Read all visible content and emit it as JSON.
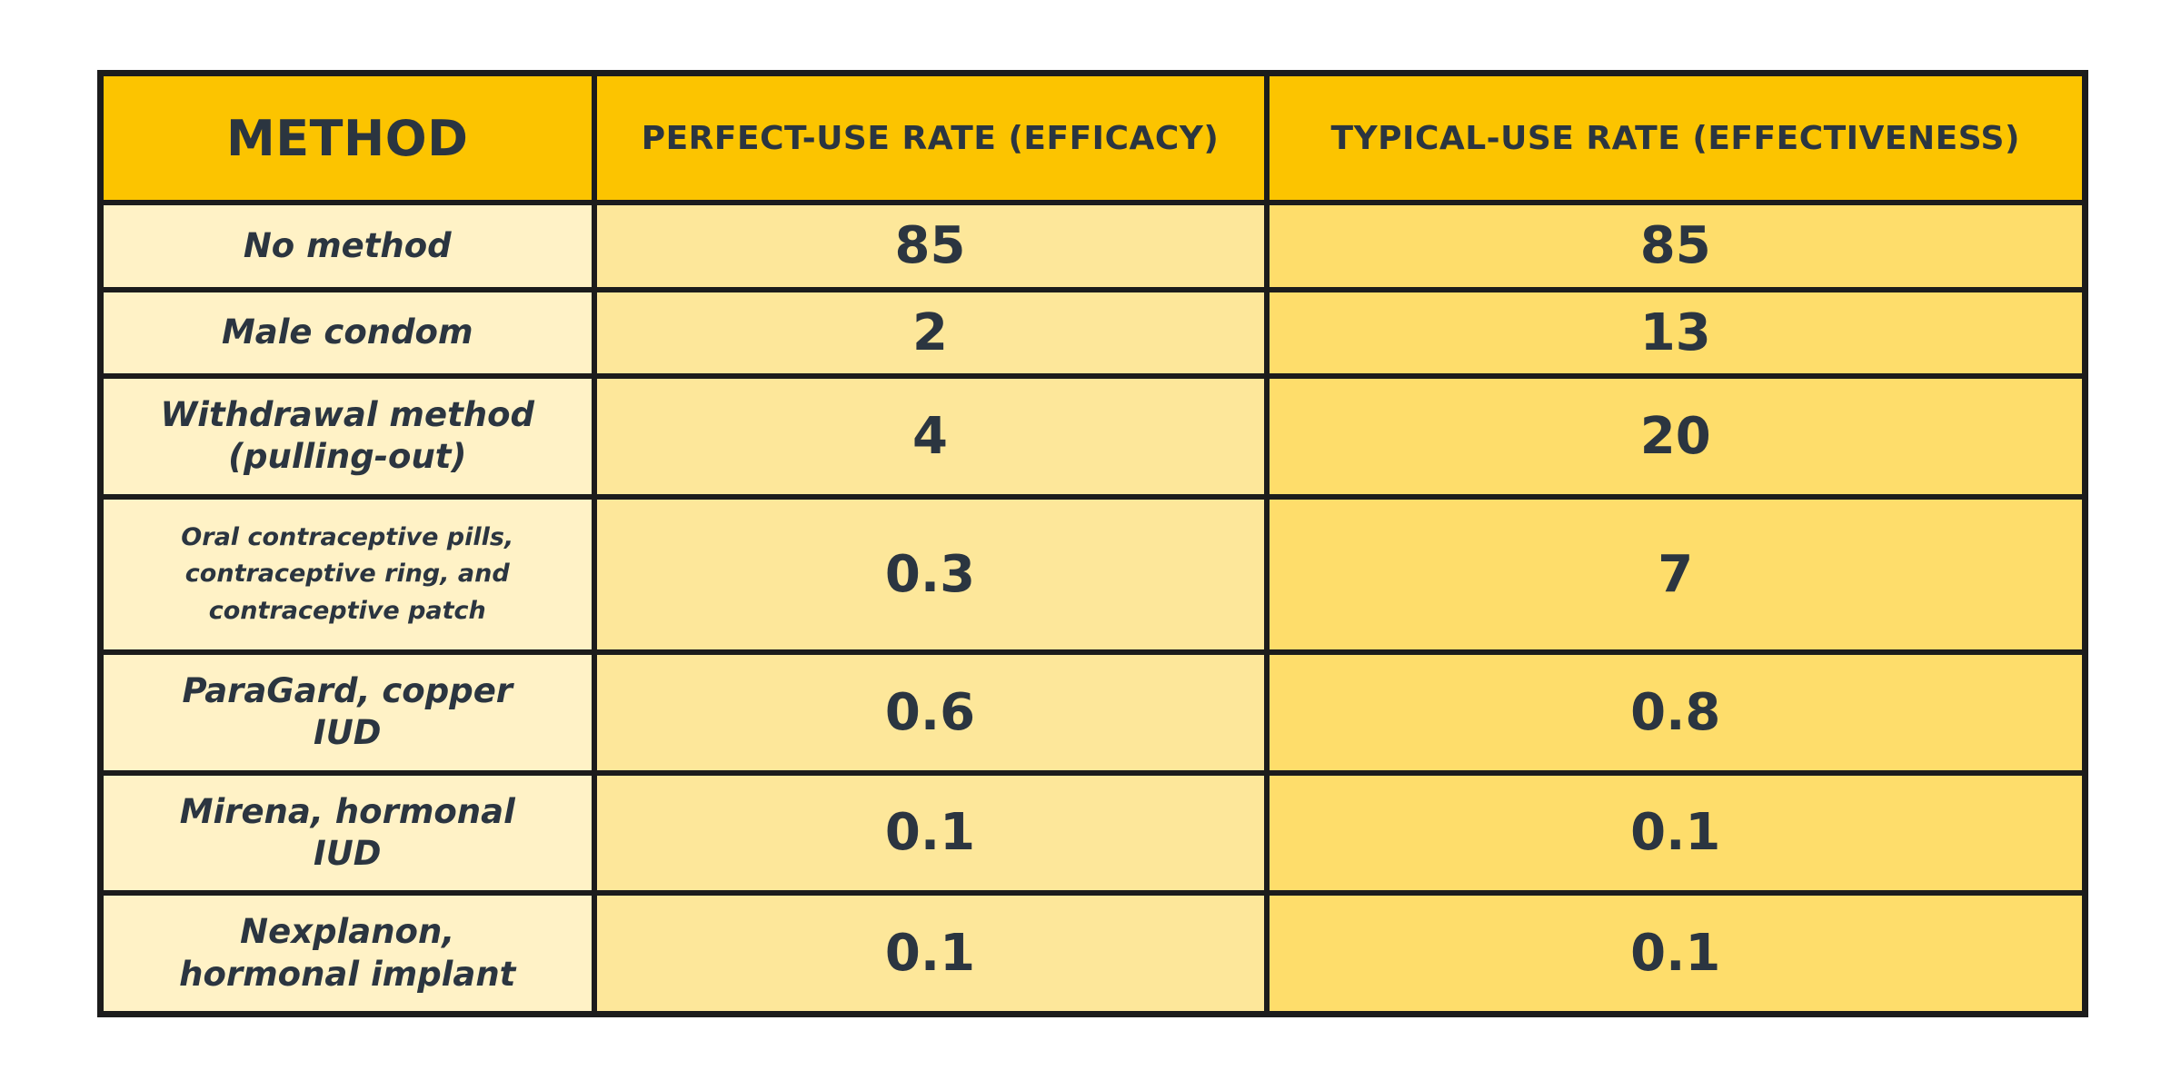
{
  "table": {
    "columns": [
      "METHOD",
      "PERFECT-USE RATE (EFFICACY)",
      "TYPICAL-USE RATE (EFFECTIVENESS)"
    ],
    "rows": [
      [
        "No method",
        85,
        85
      ],
      [
        "Male condom",
        2,
        13
      ],
      [
        "Withdrawal method (pulling-out)",
        4,
        20
      ],
      [
        "Oral contraceptive pills, contraceptive ring, and contraceptive patch",
        0.3,
        7
      ],
      [
        "ParaGard, copper IUD",
        0.6,
        0.8
      ],
      [
        "Mirena, hormonal IUD",
        0.1,
        0.1
      ],
      [
        "Nexplanon, hormonal implant",
        0.1,
        0.1
      ]
    ]
  }
}
